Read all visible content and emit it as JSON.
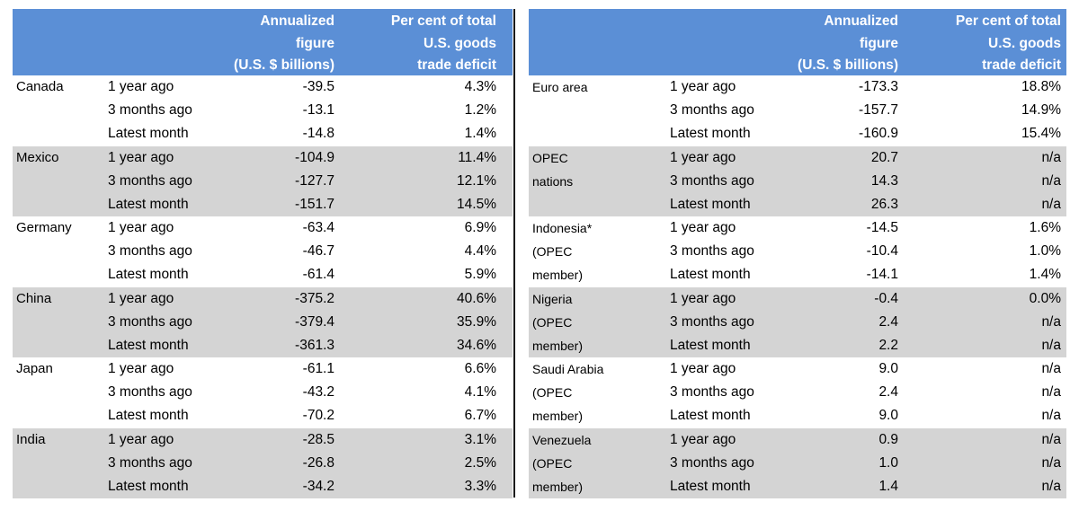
{
  "headers": {
    "figure": [
      "Annualized",
      "figure",
      "(U.S. $ billions)"
    ],
    "percent": [
      "Per cent of total",
      "U.S. goods",
      "trade deficit"
    ]
  },
  "periods": [
    "1 year ago",
    "3 months ago",
    "Latest month"
  ],
  "left": [
    {
      "region": [
        "Canada"
      ],
      "values": [
        "-39.5",
        "-13.1",
        "-14.8"
      ],
      "percents": [
        "4.3%",
        "1.2%",
        "1.4%"
      ]
    },
    {
      "region": [
        "Mexico"
      ],
      "values": [
        "-104.9",
        "-127.7",
        "-151.7"
      ],
      "percents": [
        "11.4%",
        "12.1%",
        "14.5%"
      ]
    },
    {
      "region": [
        "Germany"
      ],
      "values": [
        "-63.4",
        "-46.7",
        "-61.4"
      ],
      "percents": [
        "6.9%",
        "4.4%",
        "5.9%"
      ]
    },
    {
      "region": [
        "China"
      ],
      "values": [
        "-375.2",
        "-379.4",
        "-361.3"
      ],
      "percents": [
        "40.6%",
        "35.9%",
        "34.6%"
      ]
    },
    {
      "region": [
        "Japan"
      ],
      "values": [
        "-61.1",
        "-43.2",
        "-70.2"
      ],
      "percents": [
        "6.6%",
        "4.1%",
        "6.7%"
      ]
    },
    {
      "region": [
        "India"
      ],
      "values": [
        "-28.5",
        "-26.8",
        "-34.2"
      ],
      "percents": [
        "3.1%",
        "2.5%",
        "3.3%"
      ]
    }
  ],
  "right": [
    {
      "region": [
        "Euro area"
      ],
      "values": [
        "-173.3",
        "-157.7",
        "-160.9"
      ],
      "percents": [
        "18.8%",
        "14.9%",
        "15.4%"
      ]
    },
    {
      "region": [
        "OPEC",
        "nations"
      ],
      "values": [
        "20.7",
        "14.3",
        "26.3"
      ],
      "percents": [
        "n/a",
        "n/a",
        "n/a"
      ]
    },
    {
      "region": [
        "Indonesia*",
        "(OPEC",
        "member)"
      ],
      "values": [
        "-14.5",
        "-10.4",
        "-14.1"
      ],
      "percents": [
        "1.6%",
        "1.0%",
        "1.4%"
      ]
    },
    {
      "region": [
        "Nigeria",
        "(OPEC",
        "member)"
      ],
      "values": [
        "-0.4",
        "2.4",
        "2.2"
      ],
      "percents": [
        "0.0%",
        "n/a",
        "n/a"
      ]
    },
    {
      "region": [
        "Saudi Arabia",
        "(OPEC",
        "member)"
      ],
      "values": [
        "9.0",
        "2.4",
        "9.0"
      ],
      "percents": [
        "n/a",
        "n/a",
        "n/a"
      ]
    },
    {
      "region": [
        "Venezuela",
        "(OPEC",
        "member)"
      ],
      "values": [
        "0.9",
        "1.0",
        "1.4"
      ],
      "percents": [
        "n/a",
        "n/a",
        "n/a"
      ]
    }
  ]
}
